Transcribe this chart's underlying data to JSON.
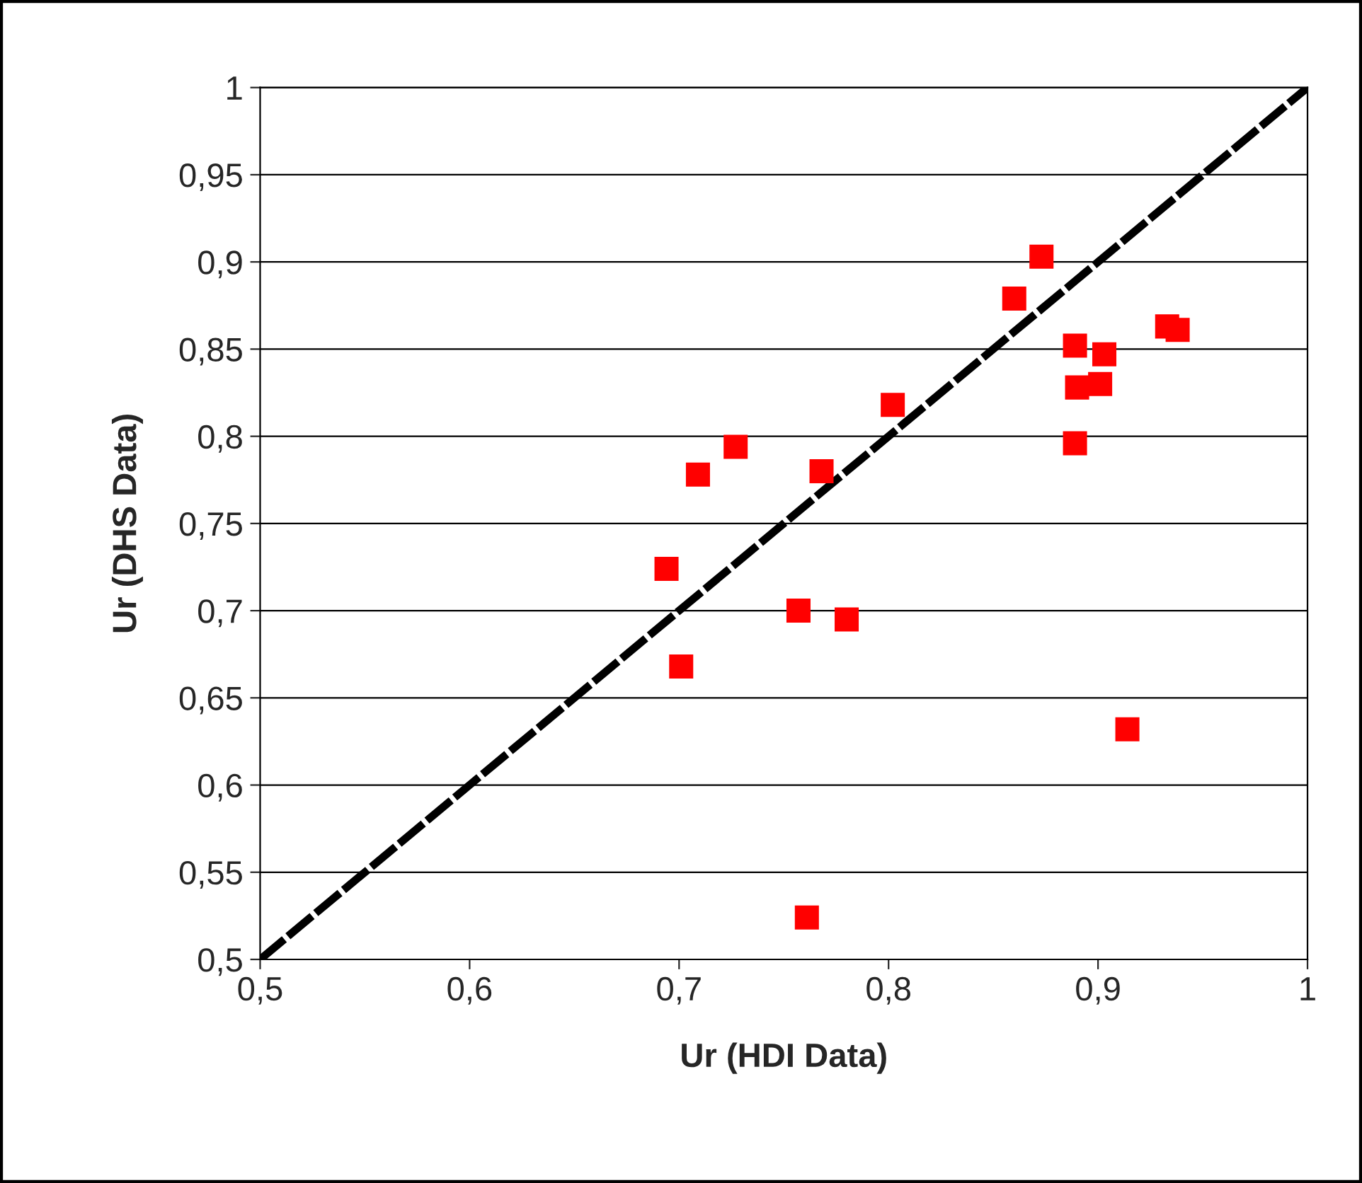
{
  "chart_data": {
    "type": "scatter",
    "xlabel": "Ur (HDI Data)",
    "ylabel": "Ur (DHS Data)",
    "x": [
      0.694,
      0.701,
      0.709,
      0.727,
      0.757,
      0.761,
      0.768,
      0.78,
      0.802,
      0.86,
      0.873,
      0.889,
      0.889,
      0.89,
      0.903,
      0.901,
      0.914,
      0.933,
      0.938
    ],
    "series": [
      {
        "color": "#ff0000",
        "marker": "square",
        "values": [
          0.724,
          0.668,
          0.778,
          0.794,
          0.7,
          0.524,
          0.78,
          0.695,
          0.818,
          0.879,
          0.903,
          0.852,
          0.796,
          0.828,
          0.847,
          0.83,
          0.632,
          0.863,
          0.861
        ]
      },
      {
        "type": "line",
        "color": "#000000",
        "marker": "none",
        "line_style": "dashed",
        "x": [
          0.5,
          1
        ],
        "values": [
          0.5,
          1
        ]
      }
    ],
    "xlim": [
      0.5,
      1
    ],
    "ylim": [
      0.5,
      1
    ],
    "xticks": [
      {
        "value": 0.5,
        "label": "0,5"
      },
      {
        "value": 0.6,
        "label": "0,6"
      },
      {
        "value": 0.7,
        "label": "0,7"
      },
      {
        "value": 0.8,
        "label": "0,8"
      },
      {
        "value": 0.9,
        "label": "0,9"
      },
      1
    ],
    "yticks": [
      {
        "value": 0.5,
        "label": "0,5"
      },
      {
        "value": 0.55,
        "label": "0,55"
      },
      {
        "value": 0.6,
        "label": "0,6"
      },
      {
        "value": 0.65,
        "label": "0,65"
      },
      {
        "value": 0.7,
        "label": "0,7"
      },
      {
        "value": 0.75,
        "label": "0,75"
      },
      {
        "value": 0.8,
        "label": "0,8"
      },
      {
        "value": 0.85,
        "label": "0,85"
      },
      {
        "value": 0.9,
        "label": "0,9"
      },
      {
        "value": 0.95,
        "label": "0,95"
      },
      1
    ],
    "grid": "y"
  }
}
